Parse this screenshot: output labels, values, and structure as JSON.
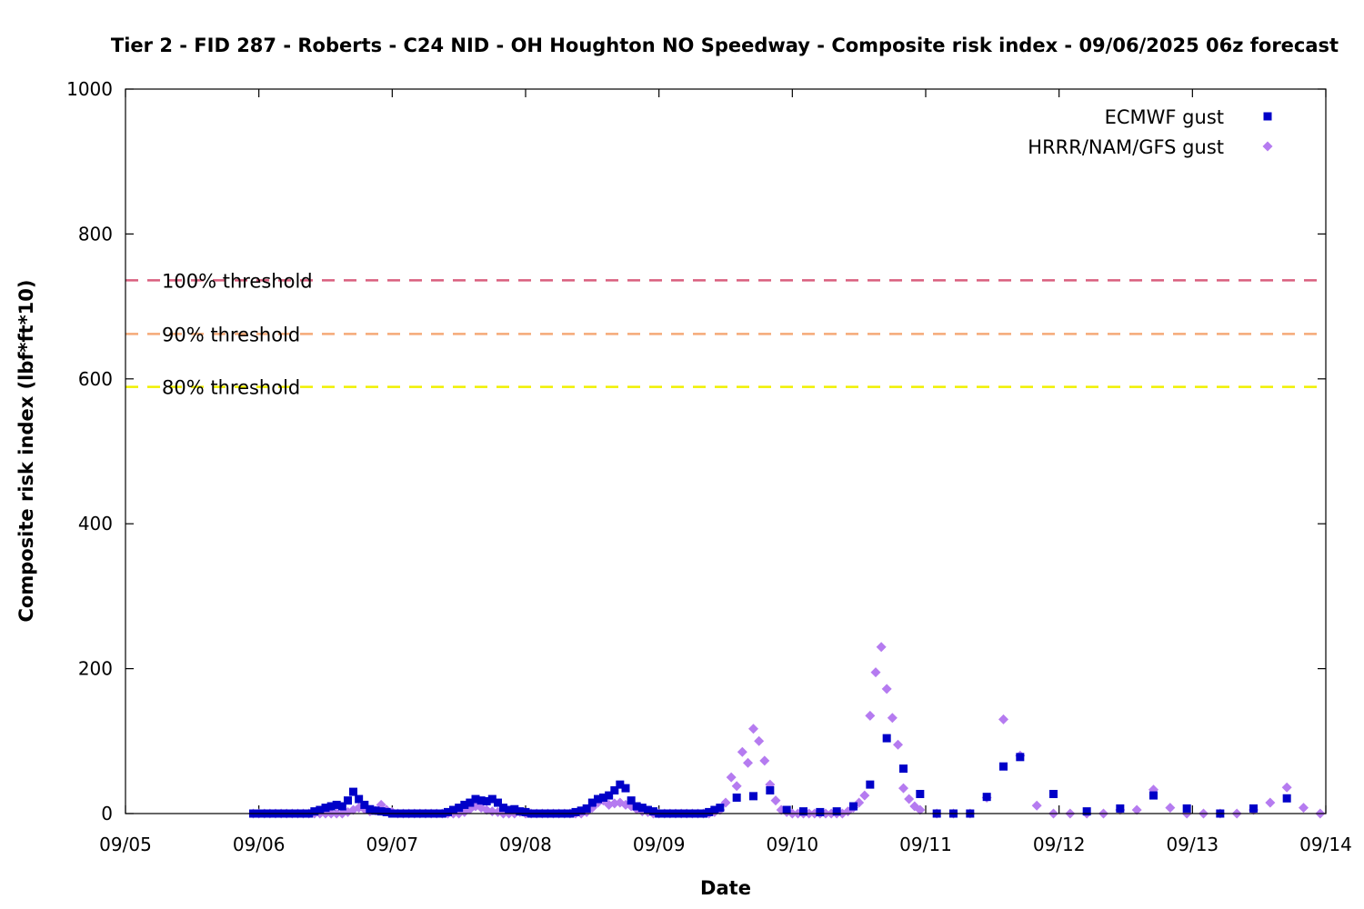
{
  "chart_data": {
    "type": "scatter",
    "title": "Tier 2 - FID 287 - Roberts - C24 NID - OH Houghton NO Speedway - Composite risk index - 09/06/2025 06z forecast",
    "xlabel": "Date",
    "ylabel": "Composite risk index (lbf*ft*10)",
    "x_unit": "days since 09/05 00z",
    "xlim": [
      0,
      9
    ],
    "ylim": [
      0,
      1000
    ],
    "x_ticks": [
      0,
      1,
      2,
      3,
      4,
      5,
      6,
      7,
      8,
      9
    ],
    "x_tick_labels": [
      "09/05",
      "09/06",
      "09/07",
      "09/08",
      "09/09",
      "09/10",
      "09/11",
      "09/12",
      "09/13",
      "09/14"
    ],
    "y_ticks": [
      0,
      200,
      400,
      600,
      800,
      1000
    ],
    "y_tick_labels": [
      "0",
      "200",
      "400",
      "600",
      "800",
      "1000"
    ],
    "legend_position": "top-right",
    "thresholds": [
      {
        "label": "100% threshold",
        "value": 736,
        "color": "#d95f7e"
      },
      {
        "label": "90% threshold",
        "value": 662,
        "color": "#f5aa78"
      },
      {
        "label": "80% threshold",
        "value": 589,
        "color": "#f0f000"
      }
    ],
    "series": [
      {
        "name": "ECMWF gust",
        "marker": "square",
        "color": "#0000c8",
        "points": [
          [
            0.958,
            0
          ],
          [
            1.0,
            0
          ],
          [
            1.042,
            0
          ],
          [
            1.083,
            0
          ],
          [
            1.125,
            0
          ],
          [
            1.167,
            0
          ],
          [
            1.208,
            0
          ],
          [
            1.25,
            0
          ],
          [
            1.292,
            0
          ],
          [
            1.333,
            0
          ],
          [
            1.375,
            0
          ],
          [
            1.417,
            3
          ],
          [
            1.458,
            5
          ],
          [
            1.5,
            8
          ],
          [
            1.542,
            10
          ],
          [
            1.583,
            12
          ],
          [
            1.625,
            10
          ],
          [
            1.667,
            18
          ],
          [
            1.708,
            30
          ],
          [
            1.75,
            20
          ],
          [
            1.792,
            12
          ],
          [
            1.833,
            6
          ],
          [
            1.875,
            4
          ],
          [
            1.917,
            3
          ],
          [
            1.958,
            2
          ],
          [
            2.0,
            0
          ],
          [
            2.042,
            0
          ],
          [
            2.083,
            0
          ],
          [
            2.125,
            0
          ],
          [
            2.167,
            0
          ],
          [
            2.208,
            0
          ],
          [
            2.25,
            0
          ],
          [
            2.292,
            0
          ],
          [
            2.333,
            0
          ],
          [
            2.375,
            0
          ],
          [
            2.417,
            2
          ],
          [
            2.458,
            5
          ],
          [
            2.5,
            8
          ],
          [
            2.542,
            12
          ],
          [
            2.583,
            15
          ],
          [
            2.625,
            20
          ],
          [
            2.667,
            18
          ],
          [
            2.708,
            17
          ],
          [
            2.75,
            20
          ],
          [
            2.792,
            15
          ],
          [
            2.833,
            8
          ],
          [
            2.875,
            5
          ],
          [
            2.917,
            6
          ],
          [
            2.958,
            3
          ],
          [
            3.0,
            2
          ],
          [
            3.042,
            0
          ],
          [
            3.083,
            0
          ],
          [
            3.125,
            0
          ],
          [
            3.167,
            0
          ],
          [
            3.208,
            0
          ],
          [
            3.25,
            0
          ],
          [
            3.292,
            0
          ],
          [
            3.333,
            0
          ],
          [
            3.375,
            2
          ],
          [
            3.417,
            4
          ],
          [
            3.458,
            7
          ],
          [
            3.5,
            15
          ],
          [
            3.542,
            20
          ],
          [
            3.583,
            22
          ],
          [
            3.625,
            25
          ],
          [
            3.667,
            32
          ],
          [
            3.708,
            40
          ],
          [
            3.75,
            35
          ],
          [
            3.792,
            18
          ],
          [
            3.833,
            10
          ],
          [
            3.875,
            8
          ],
          [
            3.917,
            5
          ],
          [
            3.958,
            3
          ],
          [
            4.0,
            0
          ],
          [
            4.042,
            0
          ],
          [
            4.083,
            0
          ],
          [
            4.125,
            0
          ],
          [
            4.167,
            0
          ],
          [
            4.208,
            0
          ],
          [
            4.25,
            0
          ],
          [
            4.292,
            0
          ],
          [
            4.333,
            0
          ],
          [
            4.375,
            2
          ],
          [
            4.417,
            5
          ],
          [
            4.458,
            8
          ],
          [
            4.583,
            22
          ],
          [
            4.708,
            24
          ],
          [
            4.833,
            32
          ],
          [
            4.958,
            5
          ],
          [
            5.083,
            3
          ],
          [
            5.208,
            2
          ],
          [
            5.333,
            3
          ],
          [
            5.458,
            10
          ],
          [
            5.583,
            40
          ],
          [
            5.708,
            104
          ],
          [
            5.833,
            62
          ],
          [
            5.958,
            27
          ],
          [
            6.083,
            0
          ],
          [
            6.208,
            0
          ],
          [
            6.333,
            0
          ],
          [
            6.458,
            23
          ],
          [
            6.583,
            65
          ],
          [
            6.708,
            78
          ],
          [
            6.958,
            27
          ],
          [
            7.208,
            3
          ],
          [
            7.458,
            7
          ],
          [
            7.708,
            25
          ],
          [
            7.958,
            7
          ],
          [
            8.208,
            0
          ],
          [
            8.458,
            7
          ],
          [
            8.708,
            21
          ]
        ]
      },
      {
        "name": "HRRR/NAM/GFS gust",
        "marker": "diamond",
        "color": "#b57bf0",
        "points": [
          [
            0.958,
            0
          ],
          [
            1.0,
            0
          ],
          [
            1.042,
            0
          ],
          [
            1.083,
            0
          ],
          [
            1.125,
            0
          ],
          [
            1.167,
            0
          ],
          [
            1.208,
            0
          ],
          [
            1.25,
            0
          ],
          [
            1.292,
            0
          ],
          [
            1.333,
            0
          ],
          [
            1.375,
            0
          ],
          [
            1.417,
            0
          ],
          [
            1.458,
            0
          ],
          [
            1.5,
            0
          ],
          [
            1.542,
            0
          ],
          [
            1.583,
            0
          ],
          [
            1.625,
            0
          ],
          [
            1.667,
            2
          ],
          [
            1.708,
            5
          ],
          [
            1.75,
            8
          ],
          [
            1.792,
            6
          ],
          [
            1.833,
            3
          ],
          [
            1.875,
            4
          ],
          [
            1.917,
            12
          ],
          [
            1.958,
            5
          ],
          [
            2.0,
            2
          ],
          [
            2.042,
            0
          ],
          [
            2.083,
            0
          ],
          [
            2.125,
            0
          ],
          [
            2.167,
            0
          ],
          [
            2.208,
            0
          ],
          [
            2.25,
            0
          ],
          [
            2.292,
            0
          ],
          [
            2.333,
            0
          ],
          [
            2.375,
            0
          ],
          [
            2.417,
            0
          ],
          [
            2.458,
            0
          ],
          [
            2.5,
            0
          ],
          [
            2.542,
            2
          ],
          [
            2.583,
            6
          ],
          [
            2.625,
            10
          ],
          [
            2.667,
            8
          ],
          [
            2.708,
            5
          ],
          [
            2.75,
            3
          ],
          [
            2.792,
            2
          ],
          [
            2.833,
            0
          ],
          [
            2.875,
            0
          ],
          [
            2.917,
            0
          ],
          [
            2.958,
            2
          ],
          [
            3.0,
            0
          ],
          [
            3.042,
            0
          ],
          [
            3.083,
            0
          ],
          [
            3.125,
            0
          ],
          [
            3.167,
            0
          ],
          [
            3.208,
            0
          ],
          [
            3.25,
            0
          ],
          [
            3.292,
            0
          ],
          [
            3.333,
            0
          ],
          [
            3.375,
            0
          ],
          [
            3.417,
            0
          ],
          [
            3.458,
            2
          ],
          [
            3.5,
            8
          ],
          [
            3.542,
            15
          ],
          [
            3.583,
            18
          ],
          [
            3.625,
            12
          ],
          [
            3.667,
            14
          ],
          [
            3.708,
            15
          ],
          [
            3.75,
            12
          ],
          [
            3.792,
            10
          ],
          [
            3.833,
            6
          ],
          [
            3.875,
            3
          ],
          [
            3.917,
            2
          ],
          [
            3.958,
            0
          ],
          [
            4.0,
            0
          ],
          [
            4.042,
            0
          ],
          [
            4.083,
            0
          ],
          [
            4.125,
            0
          ],
          [
            4.167,
            0
          ],
          [
            4.208,
            0
          ],
          [
            4.25,
            0
          ],
          [
            4.292,
            0
          ],
          [
            4.333,
            0
          ],
          [
            4.375,
            0
          ],
          [
            4.417,
            2
          ],
          [
            4.458,
            5
          ],
          [
            4.5,
            15
          ],
          [
            4.542,
            50
          ],
          [
            4.583,
            38
          ],
          [
            4.625,
            85
          ],
          [
            4.667,
            70
          ],
          [
            4.708,
            117
          ],
          [
            4.75,
            100
          ],
          [
            4.792,
            73
          ],
          [
            4.833,
            40
          ],
          [
            4.875,
            18
          ],
          [
            4.917,
            5
          ],
          [
            4.958,
            2
          ],
          [
            5.0,
            0
          ],
          [
            5.042,
            0
          ],
          [
            5.083,
            0
          ],
          [
            5.125,
            0
          ],
          [
            5.167,
            0
          ],
          [
            5.208,
            0
          ],
          [
            5.25,
            0
          ],
          [
            5.292,
            0
          ],
          [
            5.333,
            0
          ],
          [
            5.375,
            0
          ],
          [
            5.417,
            3
          ],
          [
            5.458,
            8
          ],
          [
            5.5,
            15
          ],
          [
            5.542,
            25
          ],
          [
            5.583,
            135
          ],
          [
            5.625,
            195
          ],
          [
            5.667,
            230
          ],
          [
            5.708,
            172
          ],
          [
            5.75,
            132
          ],
          [
            5.792,
            95
          ],
          [
            5.833,
            35
          ],
          [
            5.875,
            20
          ],
          [
            5.917,
            10
          ],
          [
            5.958,
            5
          ],
          [
            6.083,
            0
          ],
          [
            6.208,
            0
          ],
          [
            6.333,
            0
          ],
          [
            6.458,
            22
          ],
          [
            6.583,
            130
          ],
          [
            6.708,
            80
          ],
          [
            6.833,
            11
          ],
          [
            6.958,
            0
          ],
          [
            7.083,
            0
          ],
          [
            7.208,
            0
          ],
          [
            7.333,
            0
          ],
          [
            7.458,
            5
          ],
          [
            7.583,
            5
          ],
          [
            7.708,
            33
          ],
          [
            7.833,
            8
          ],
          [
            7.958,
            0
          ],
          [
            8.083,
            0
          ],
          [
            8.208,
            0
          ],
          [
            8.333,
            0
          ],
          [
            8.458,
            5
          ],
          [
            8.583,
            15
          ],
          [
            8.708,
            36
          ],
          [
            8.833,
            8
          ],
          [
            8.958,
            0
          ]
        ]
      }
    ]
  }
}
